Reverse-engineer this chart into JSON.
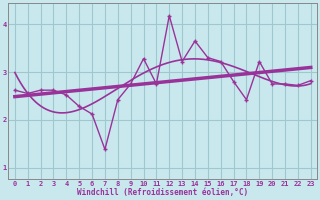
{
  "bg_color": "#c8e8ee",
  "grid_color": "#a0c8cc",
  "line_color": "#993399",
  "xlim": [
    -0.5,
    23.5
  ],
  "ylim": [
    0.75,
    4.45
  ],
  "x_data": [
    0,
    1,
    2,
    3,
    4,
    5,
    6,
    7,
    8,
    9,
    10,
    11,
    12,
    13,
    14,
    15,
    16,
    17,
    18,
    19,
    20,
    21,
    22,
    23
  ],
  "y_jagged": [
    2.62,
    2.55,
    2.62,
    2.62,
    2.52,
    2.28,
    2.12,
    1.38,
    2.42,
    2.75,
    3.28,
    2.75,
    4.18,
    3.22,
    3.65,
    3.3,
    3.22,
    2.8,
    2.42,
    3.22,
    2.75,
    2.75,
    2.72,
    2.82
  ],
  "xlabel": "Windchill (Refroidissement éolien,°C)",
  "ytick_vals": [
    1,
    2,
    3,
    4
  ],
  "xtick_vals": [
    0,
    1,
    2,
    3,
    4,
    5,
    6,
    7,
    8,
    9,
    10,
    11,
    12,
    13,
    14,
    15,
    16,
    17,
    18,
    19,
    20,
    21,
    22,
    23
  ],
  "poly_deg_bell": 4,
  "poly_deg_lin": 1
}
